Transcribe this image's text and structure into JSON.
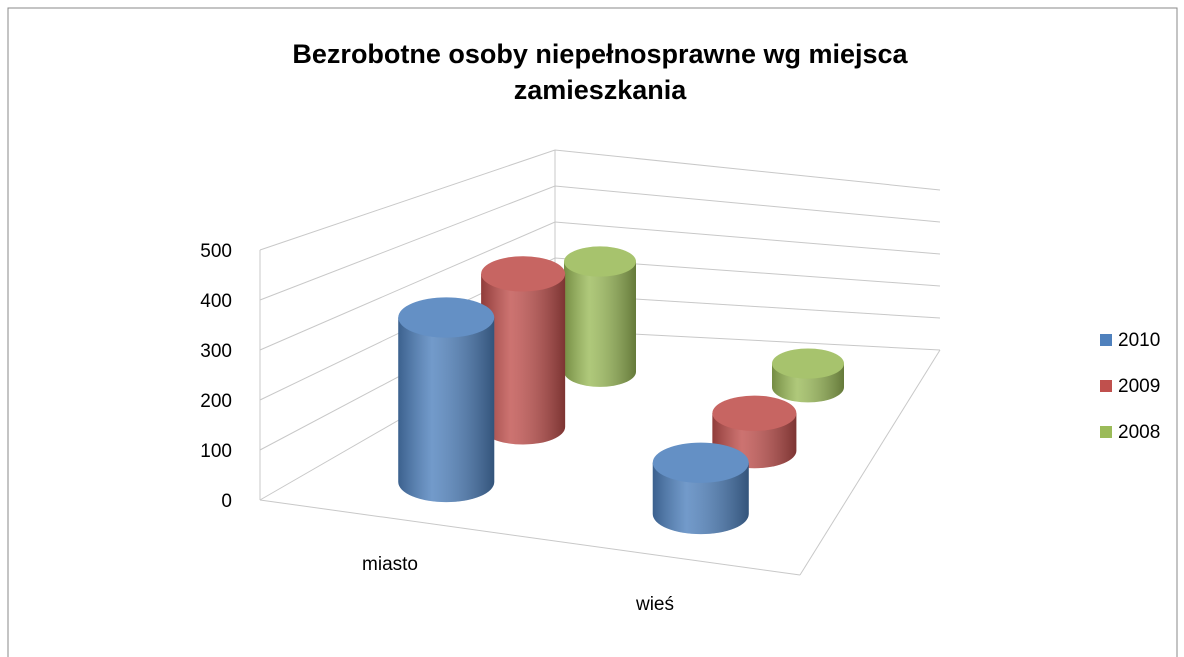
{
  "chart_data": {
    "type": "cylinder3d",
    "title": "Bezrobotne osoby niepełnosprawne wg miejsca zamieszkania",
    "categories": [
      "miasto",
      "wieś"
    ],
    "series": [
      {
        "name": "2010",
        "color": "#4f81bd",
        "values": [
          350,
          110
        ]
      },
      {
        "name": "2009",
        "color": "#c0504d",
        "values": [
          360,
          90
        ]
      },
      {
        "name": "2008",
        "color": "#9bbb59",
        "values": [
          290,
          65
        ]
      }
    ],
    "ylim": [
      0,
      500
    ],
    "yticks": [
      0,
      100,
      200,
      300,
      400,
      500
    ],
    "grid": true,
    "legend": "right"
  }
}
